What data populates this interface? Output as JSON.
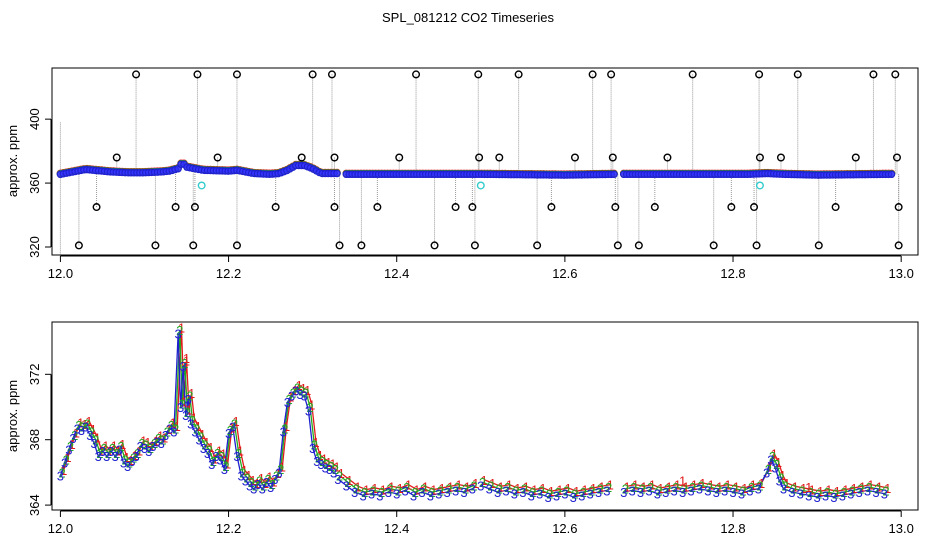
{
  "title": "SPL_081212  CO2 Timeseries",
  "colors": {
    "axis": "#000000",
    "drop_line": "#9a9a9a",
    "raw_point": "#000000",
    "series_1": "#e31a1c",
    "series_2": "#22aa22",
    "series_3": "#1f1fd0",
    "flagged": "#33cccc",
    "fill_blue": "#3333ff"
  },
  "chart_data": [
    {
      "type": "scatter",
      "name": "top-panel",
      "ylabel": "approx. ppm",
      "xlim": [
        11.99,
        13.02
      ],
      "ylim": [
        315,
        432
      ],
      "x_ticks": [
        12.0,
        12.2,
        12.4,
        12.6,
        12.8,
        13.0
      ],
      "x_tick_labels": [
        "12.0",
        "12.2",
        "12.4",
        "12.6",
        "12.8",
        "13.0"
      ],
      "y_ticks": [
        320,
        360,
        400
      ],
      "y_tick_labels": [
        "320",
        "360",
        "400"
      ],
      "baseline_segments": [
        {
          "x": [
            12.0,
            12.01,
            12.02,
            12.03,
            12.04,
            12.06,
            12.08,
            12.1,
            12.12,
            12.13,
            12.14,
            12.145,
            12.15,
            12.16,
            12.17,
            12.2,
            12.21,
            12.23,
            12.25,
            12.26,
            12.27,
            12.28,
            12.29,
            12.3,
            12.31,
            12.32,
            12.33
          ],
          "y": [
            365.5,
            366.5,
            367.5,
            368.5,
            368,
            367,
            366.5,
            366.5,
            367,
            367.5,
            369,
            373,
            370,
            369,
            368,
            367.5,
            368,
            366,
            365.5,
            366,
            368,
            371,
            371,
            369,
            366,
            366,
            366
          ]
        },
        {
          "x": [
            12.34,
            12.4,
            12.5,
            12.6,
            12.66
          ],
          "y": [
            365.5,
            365.5,
            365.5,
            365,
            365.5
          ]
        },
        {
          "x": [
            12.67,
            12.75,
            12.82,
            12.84,
            12.86,
            12.9,
            12.99
          ],
          "y": [
            365.5,
            365.5,
            365.5,
            366,
            365.5,
            365,
            365.5
          ]
        }
      ],
      "raw_high": {
        "x": [
          12.09,
          12.163,
          12.21,
          12.3,
          12.323,
          12.423,
          12.497,
          12.545,
          12.633,
          12.655,
          12.752,
          12.831,
          12.877,
          12.967,
          12.993
        ],
        "y": 428
      },
      "raw_low": {
        "x": [
          12.022,
          12.113,
          12.158,
          12.21,
          12.332,
          12.358,
          12.445,
          12.493,
          12.567,
          12.663,
          12.688,
          12.777,
          12.828,
          12.902,
          12.997
        ],
        "y": 321
      },
      "raw_mid_high": {
        "x": [
          12.067,
          12.187,
          12.287,
          12.326,
          12.403,
          12.498,
          12.522,
          12.612,
          12.657,
          12.722,
          12.832,
          12.857,
          12.946,
          12.995
        ],
        "y": 376
      },
      "raw_mid_low": {
        "x": [
          12.043,
          12.137,
          12.16,
          12.256,
          12.326,
          12.377,
          12.47,
          12.49,
          12.584,
          12.66,
          12.707,
          12.798,
          12.825,
          12.922,
          12.997
        ],
        "y": 345
      },
      "flagged": {
        "x": [
          12.168,
          12.5,
          12.832
        ],
        "y": [
          358.5,
          358.5,
          358.5
        ]
      }
    },
    {
      "type": "line",
      "name": "bottom-panel",
      "ylabel": "approx. ppm",
      "xlim": [
        11.99,
        13.02
      ],
      "ylim": [
        363.7,
        375.2
      ],
      "x_ticks": [
        12.0,
        12.2,
        12.4,
        12.6,
        12.8,
        13.0
      ],
      "x_tick_labels": [
        "12.0",
        "12.2",
        "12.4",
        "12.6",
        "12.8",
        "13.0"
      ],
      "y_ticks": [
        364,
        368,
        372
      ],
      "y_tick_labels": [
        "364",
        "368",
        "372"
      ],
      "series": [
        {
          "name": "1",
          "label": "1",
          "offset_x": 0.004,
          "offset_y": 0.35
        },
        {
          "name": "2",
          "label": "2",
          "offset_x": 0.002,
          "offset_y": 0.2
        },
        {
          "name": "3",
          "label": "3",
          "offset_x": 0.0,
          "offset_y": 0.0
        }
      ],
      "segments": [
        {
          "x": [
            12.0,
            12.005,
            12.01,
            12.015,
            12.02,
            12.025,
            12.03,
            12.035,
            12.04,
            12.045,
            12.05,
            12.055,
            12.06,
            12.065,
            12.07,
            12.075,
            12.08,
            12.085,
            12.09,
            12.095,
            12.1,
            12.105,
            12.11,
            12.115,
            12.12,
            12.125,
            12.13,
            12.135,
            12.14,
            12.143,
            12.146,
            12.149,
            12.152,
            12.155,
            12.16,
            12.165,
            12.17,
            12.175,
            12.18,
            12.185,
            12.19,
            12.195,
            12.2,
            12.205,
            12.21,
            12.215,
            12.22,
            12.225,
            12.23,
            12.235,
            12.24,
            12.245,
            12.25,
            12.255,
            12.26,
            12.265,
            12.27,
            12.275,
            12.28,
            12.285,
            12.29,
            12.295,
            12.3,
            12.305,
            12.31,
            12.315,
            12.32,
            12.325
          ],
          "y": [
            365.8,
            366.6,
            367.4,
            368.1,
            368.7,
            368.6,
            368.8,
            368.3,
            367.8,
            367.0,
            367.3,
            367.0,
            367.3,
            367.0,
            367.4,
            366.6,
            366.4,
            366.7,
            367.0,
            367.6,
            367.5,
            367.3,
            367.6,
            367.9,
            367.8,
            368.3,
            368.7,
            368.5,
            374.5,
            370.0,
            372.5,
            369.5,
            370.5,
            369.0,
            368.5,
            368.0,
            367.5,
            367.2,
            366.5,
            367.0,
            366.8,
            366.2,
            368.4,
            368.8,
            367.0,
            365.8,
            365.5,
            365.2,
            365.0,
            365.3,
            365.0,
            365.4,
            365.1,
            365.6,
            366.0,
            368.5,
            370.3,
            370.7,
            371.0,
            370.8,
            370.7,
            369.8,
            367.5,
            366.7,
            366.5,
            366.3,
            366.2,
            366.0
          ]
        },
        {
          "x": [
            12.33,
            12.34,
            12.35,
            12.36,
            12.37,
            12.38,
            12.39,
            12.4,
            12.41,
            12.42,
            12.43,
            12.44,
            12.45,
            12.46,
            12.47,
            12.48,
            12.49
          ],
          "y": [
            365.6,
            365.2,
            364.8,
            364.6,
            364.7,
            364.6,
            364.8,
            364.7,
            364.9,
            364.6,
            364.8,
            364.6,
            364.7,
            364.8,
            364.9,
            364.8,
            365.0
          ]
        },
        {
          "x": [
            12.5,
            12.51,
            12.52,
            12.53,
            12.54,
            12.55,
            12.56,
            12.57,
            12.58,
            12.59,
            12.6,
            12.61,
            12.62,
            12.63,
            12.64,
            12.65
          ],
          "y": [
            365.2,
            365.0,
            364.8,
            364.9,
            364.7,
            364.8,
            364.6,
            364.7,
            364.5,
            364.6,
            364.7,
            364.5,
            364.6,
            364.7,
            364.8,
            364.9
          ]
        },
        {
          "x": [
            12.67,
            12.68,
            12.69,
            12.7,
            12.71,
            12.72,
            12.73,
            12.74,
            12.75,
            12.76,
            12.77,
            12.78,
            12.79,
            12.8,
            12.81,
            12.82,
            12.83,
            12.84,
            12.845,
            12.85,
            12.855,
            12.86,
            12.87,
            12.88,
            12.89,
            12.9,
            12.91,
            12.92,
            12.93,
            12.94,
            12.95,
            12.96,
            12.97,
            12.98
          ],
          "y": [
            364.8,
            364.9,
            364.8,
            364.9,
            364.7,
            364.8,
            364.9,
            364.8,
            364.9,
            365.0,
            364.9,
            364.8,
            364.9,
            364.8,
            364.7,
            364.9,
            365.0,
            366.0,
            366.8,
            366.3,
            365.5,
            365.0,
            364.8,
            364.7,
            364.6,
            364.5,
            364.6,
            364.5,
            364.6,
            364.7,
            364.8,
            364.9,
            364.8,
            364.7
          ]
        }
      ],
      "labels_1_extra": [
        {
          "x": 12.15,
          "y": 373.0
        },
        {
          "x": 12.74,
          "y": 365.5
        },
        {
          "x": 12.89,
          "y": 365.1
        }
      ]
    }
  ]
}
